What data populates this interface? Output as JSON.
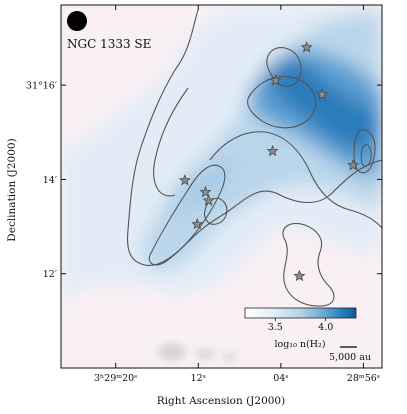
{
  "chart_data": {
    "type": "heatmap",
    "title": "",
    "field_name": "NGC 1333 SE",
    "xlabel": "Right Ascension (J2000)",
    "ylabel": "Declination (J2000)",
    "x_ticks": [
      {
        "ra_sec": 20,
        "label": "3ʰ29ᵐ20ˢ"
      },
      {
        "ra_sec": 12,
        "label": "12ˢ"
      },
      {
        "ra_sec": 4,
        "label": "04ˢ"
      },
      {
        "ra_sec": -4,
        "label": "28ᵐ56ˢ"
      }
    ],
    "y_ticks": [
      {
        "dec_arcmin": 16,
        "label": "31°16′"
      },
      {
        "dec_arcmin": 14,
        "label": "14′"
      },
      {
        "dec_arcmin": 12,
        "label": "12′"
      }
    ],
    "xlim_ra_sec": [
      25.3,
      -5.8
    ],
    "ylim_dec_arcmin": [
      10.0,
      17.7
    ],
    "colorbar": {
      "label": "log₁₀ n(H₂)",
      "range": [
        3.2,
        4.3
      ],
      "ticks": [
        "3.5",
        "4.0"
      ],
      "colormap": [
        "#ffffff",
        "#e4eff9",
        "#b4d3ea",
        "#6eaad7",
        "#2b7fbb",
        "#0a5aa0"
      ]
    },
    "scalebar_label": "5,000 au",
    "beam": "filled circle (beam size)",
    "stars": [
      {
        "ra_sec": 1.5,
        "dec_arcmin": 16.8
      },
      {
        "ra_sec": 4.5,
        "dec_arcmin": 16.1
      },
      {
        "ra_sec": 0.0,
        "dec_arcmin": 15.8
      },
      {
        "ra_sec": 4.8,
        "dec_arcmin": 14.6
      },
      {
        "ra_sec": -3.0,
        "dec_arcmin": 14.3
      },
      {
        "ra_sec": 13.3,
        "dec_arcmin": 13.98
      },
      {
        "ra_sec": 11.3,
        "dec_arcmin": 13.73
      },
      {
        "ra_sec": 11.0,
        "dec_arcmin": 13.55
      },
      {
        "ra_sec": 12.1,
        "dec_arcmin": 13.05
      },
      {
        "ra_sec": 2.2,
        "dec_arcmin": 11.95
      }
    ],
    "colors": {
      "contour": "#555555",
      "star_fill": "#8c8c8c",
      "star_edge": "#4a4a4a",
      "masked_region": "#d6d6d6",
      "background": "#f9f0f4"
    }
  }
}
